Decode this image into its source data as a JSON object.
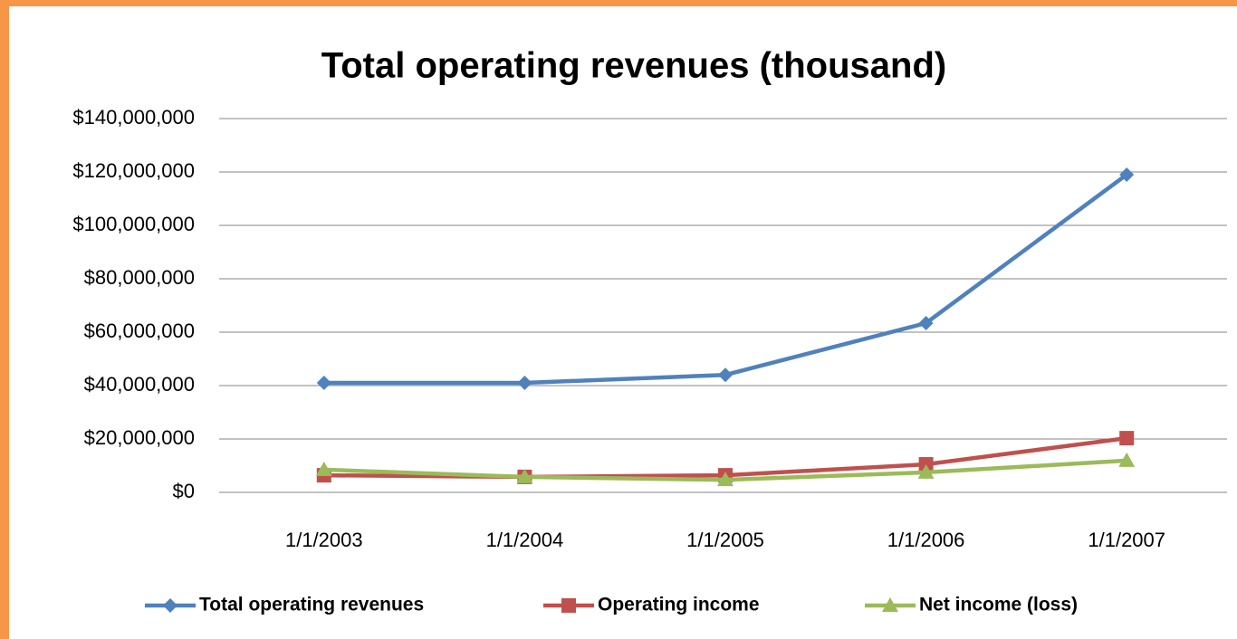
{
  "chart_data": {
    "type": "line",
    "title": "Total operating revenues (thousand)",
    "categories": [
      "1/1/2003",
      "1/1/2004",
      "1/1/2005",
      "1/1/2006",
      "1/1/2007"
    ],
    "series": [
      {
        "name": "Total operating revenues",
        "color": "#4f81bd",
        "marker": "diamond",
        "values": [
          41000000,
          41000000,
          44000000,
          63400000,
          119000000
        ]
      },
      {
        "name": "Operating income",
        "color": "#c0504d",
        "marker": "square",
        "values": [
          6400000,
          5800000,
          6400000,
          10500000,
          20300000
        ]
      },
      {
        "name": "Net income (loss)",
        "color": "#9bbb59",
        "marker": "triangle",
        "values": [
          8500000,
          5800000,
          4700000,
          7500000,
          11900000
        ]
      }
    ],
    "ylim": [
      0,
      140000000
    ],
    "yticks": [
      {
        "value": 0,
        "label": "$0"
      },
      {
        "value": 20000000,
        "label": "$20,000,000"
      },
      {
        "value": 40000000,
        "label": "$40,000,000"
      },
      {
        "value": 60000000,
        "label": "$60,000,000"
      },
      {
        "value": 80000000,
        "label": "$80,000,000"
      },
      {
        "value": 100000000,
        "label": "$100,000,000"
      },
      {
        "value": 120000000,
        "label": "$120,000,000"
      },
      {
        "value": 140000000,
        "label": "$140,000,000"
      }
    ],
    "grid": true,
    "legend": "bottom"
  }
}
